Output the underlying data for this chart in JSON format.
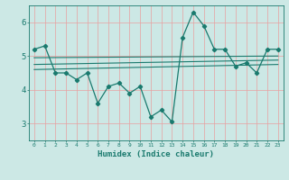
{
  "x_data": [
    0,
    1,
    2,
    3,
    4,
    5,
    6,
    7,
    8,
    9,
    10,
    11,
    12,
    13,
    14,
    15,
    16,
    17,
    18,
    19,
    20,
    21,
    22,
    23
  ],
  "y_data": [
    5.2,
    5.3,
    4.5,
    4.5,
    4.3,
    4.5,
    3.6,
    4.1,
    4.2,
    3.9,
    4.1,
    3.2,
    3.4,
    3.05,
    5.55,
    6.3,
    5.9,
    5.2,
    5.2,
    4.7,
    4.8,
    4.5,
    5.2,
    5.2
  ],
  "line_color": "#1a7a6e",
  "bg_color": "#cce8e5",
  "grid_color": "#e8a0a0",
  "tick_label_color": "#1a7a6e",
  "xlabel": "Humidex (Indice chaleur)",
  "xlabel_color": "#1a7a6e",
  "ylim": [
    2.5,
    6.5
  ],
  "yticks": [
    3,
    4,
    5,
    6
  ],
  "xticks": [
    0,
    1,
    2,
    3,
    4,
    5,
    6,
    7,
    8,
    9,
    10,
    11,
    12,
    13,
    14,
    15,
    16,
    17,
    18,
    19,
    20,
    21,
    22,
    23
  ],
  "regression_lines": [
    {
      "x0": 0,
      "y0": 4.95,
      "x1": 23,
      "y1": 5.0
    },
    {
      "x0": 0,
      "y0": 4.75,
      "x1": 23,
      "y1": 4.88
    },
    {
      "x0": 0,
      "y0": 4.6,
      "x1": 23,
      "y1": 4.75
    }
  ]
}
